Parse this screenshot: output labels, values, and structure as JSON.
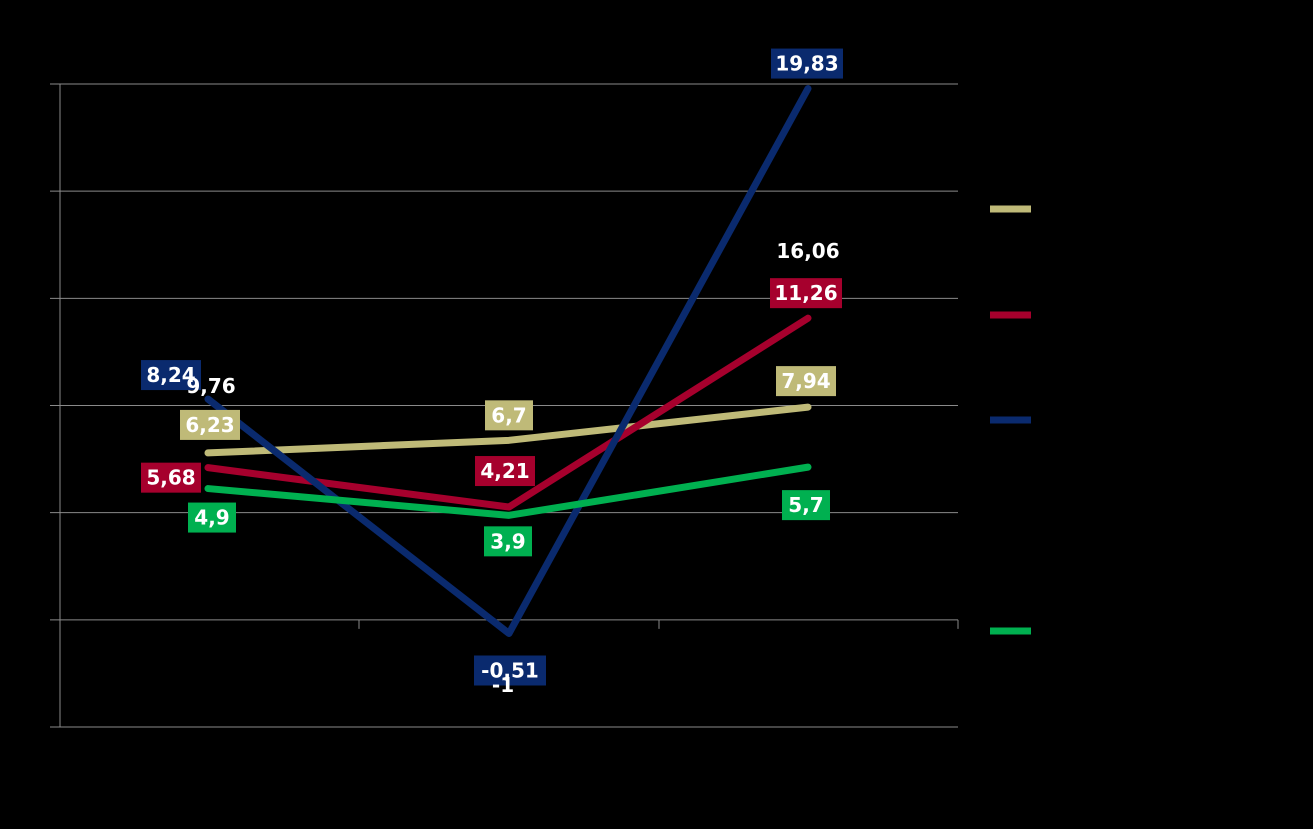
{
  "chart_data": {
    "type": "line",
    "x": [
      1,
      2,
      3
    ],
    "ylim": [
      -4,
      20
    ],
    "grid": true,
    "legend_position": "right",
    "series": [
      {
        "color": "#BFBA78",
        "values": [
          6.23,
          6.7,
          7.94
        ],
        "labels": [
          "6,23",
          "6,7",
          "7,94"
        ]
      },
      {
        "color": "#A6002D",
        "values": [
          5.68,
          4.21,
          11.26
        ],
        "labels": [
          "5,68",
          "4,21",
          "11,26"
        ]
      },
      {
        "color": "#0A2A6E",
        "values": [
          8.24,
          -0.51,
          19.83
        ],
        "labels": [
          "8,24",
          "-0,51",
          "19,83"
        ]
      },
      {
        "color": "#00B050",
        "values": [
          4.9,
          3.9,
          5.7
        ],
        "labels": [
          "4,9",
          "3,9",
          "5,7"
        ]
      }
    ],
    "annotations": [
      {
        "x": 1,
        "y": 9.76,
        "text": "9,76"
      },
      {
        "x": 2,
        "y": -1,
        "text": "-1"
      },
      {
        "x": 3,
        "y": 16.06,
        "text": "16,06"
      }
    ]
  }
}
